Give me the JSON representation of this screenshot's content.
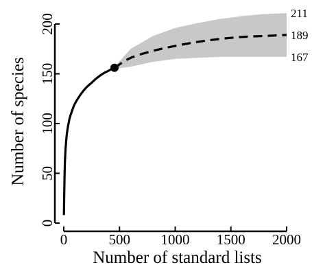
{
  "chart_data": {
    "type": "line",
    "title": "",
    "xlabel": "Number of standard lists",
    "ylabel": "Number of species",
    "xlim": [
      0,
      2000
    ],
    "ylim": [
      0,
      200
    ],
    "xticks": [
      0,
      500,
      1000,
      1500,
      2000
    ],
    "xtick_labels": [
      "0",
      "500",
      "1000",
      "1500",
      "2000"
    ],
    "yticks": [
      0,
      50,
      100,
      150,
      200
    ],
    "ytick_labels": [
      "0",
      "50",
      "100",
      "150",
      "200"
    ],
    "grid": false,
    "legend": "none",
    "series": [
      {
        "style": "solid",
        "color": "#000000",
        "x": [
          1,
          10,
          25,
          50,
          75,
          100,
          150,
          200,
          250,
          300,
          350,
          400,
          455
        ],
        "y": [
          8,
          60,
          87,
          104,
          113,
          120,
          129,
          136,
          141,
          146,
          150,
          153,
          156
        ]
      },
      {
        "style": "dashed",
        "color": "#000000",
        "x": [
          455,
          600,
          800,
          1000,
          1200,
          1400,
          1600,
          1800,
          2000
        ],
        "y": [
          156,
          166,
          173,
          178,
          182,
          185,
          187,
          188,
          189
        ]
      }
    ],
    "confidence_band": {
      "color": "#c8c8c8",
      "x": [
        455,
        600,
        800,
        1000,
        1200,
        1400,
        1600,
        1800,
        2000
      ],
      "upper": [
        157,
        175,
        188,
        196,
        201,
        205,
        208,
        210,
        211
      ],
      "lower": [
        155,
        157,
        162,
        165,
        166,
        167,
        167,
        167,
        167
      ]
    },
    "marker": {
      "x": 455,
      "y": 156
    },
    "end_labels": [
      "211",
      "189",
      "167"
    ],
    "end_label_values": [
      211,
      189,
      167
    ]
  }
}
